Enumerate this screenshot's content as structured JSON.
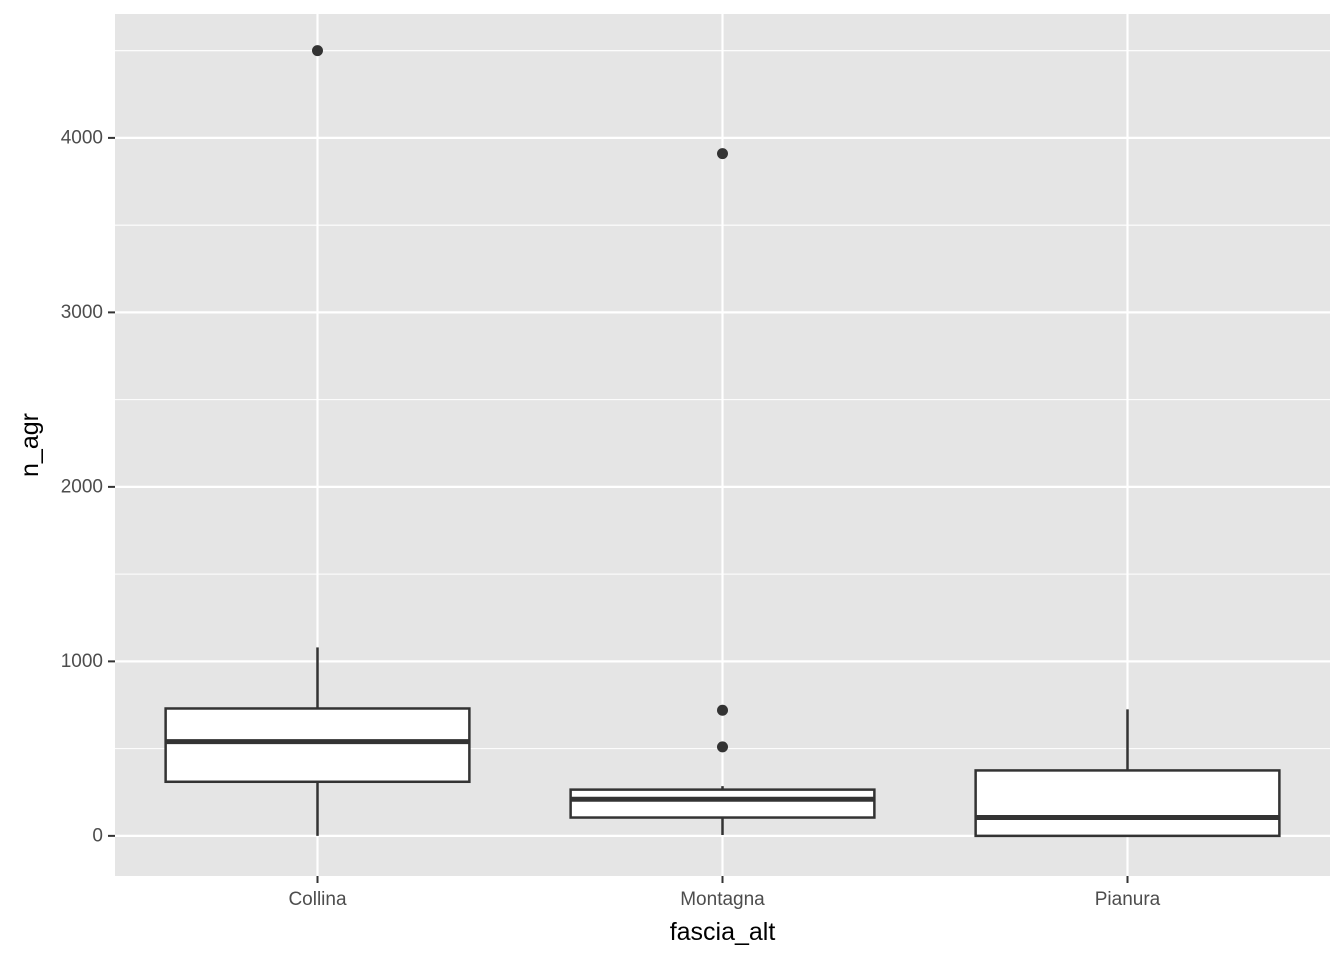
{
  "chart_data": {
    "type": "boxplot",
    "title": "",
    "xlabel": "fascia_alt",
    "ylabel": "n_agr",
    "ylim": [
      -230,
      4710
    ],
    "yticks": [
      0,
      1000,
      2000,
      3000,
      4000
    ],
    "ytick_labels": [
      "0",
      "1000",
      "2000",
      "3000",
      "4000"
    ],
    "yminor": [
      500,
      1500,
      2500,
      3500,
      4500
    ],
    "grid": true,
    "legend": "none",
    "categories": [
      "Collina",
      "Montagna",
      "Pianura"
    ],
    "boxes": [
      {
        "category": "Collina",
        "lower_whisker": 0,
        "q1": 310,
        "median": 540,
        "q3": 730,
        "upper_whisker": 1080,
        "outliers": [
          4500
        ]
      },
      {
        "category": "Montagna",
        "lower_whisker": 5,
        "q1": 105,
        "median": 210,
        "q3": 265,
        "upper_whisker": 285,
        "outliers": [
          510,
          720,
          3910
        ]
      },
      {
        "category": "Pianura",
        "lower_whisker": 0,
        "q1": 0,
        "median": 105,
        "q3": 375,
        "upper_whisker": 725,
        "outliers": []
      }
    ],
    "colors": {
      "panel_background": "#e5e5e5",
      "grid_major": "#ffffff",
      "box_fill": "#ffffff",
      "box_line": "#333333",
      "points": "#333333",
      "tick_text": "#4d4d4d",
      "axis_title": "#000000"
    }
  }
}
